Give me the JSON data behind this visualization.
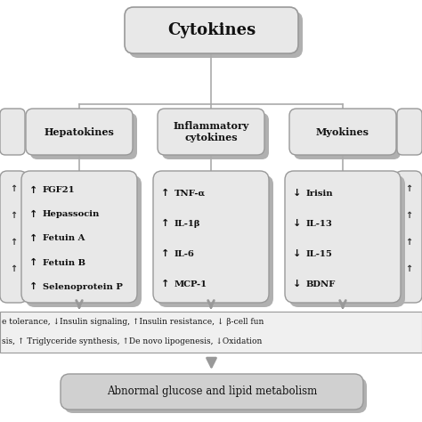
{
  "bg_color": "#ffffff",
  "box_face_light": "#e8e8e8",
  "box_face_mid": "#d0d0d0",
  "box_shadow": "#b0b0b0",
  "box_edge": "#999999",
  "line_color": "#aaaaaa",
  "arrow_color": "#999999",
  "title": "Cytokines",
  "categories": [
    "Hepatokines",
    "Inflammatory\ncytokines",
    "Myokines"
  ],
  "hepatokines_items": [
    [
      "↑",
      "FGF21"
    ],
    [
      "↑",
      "Hepassocin"
    ],
    [
      "↑",
      "Fetuin A"
    ],
    [
      "↑",
      "Fetuin B"
    ],
    [
      "↑",
      "Selenoprotein P"
    ]
  ],
  "inflammatory_items": [
    [
      "↑",
      "TNF-α"
    ],
    [
      "↑",
      "IL-1β"
    ],
    [
      "↑",
      "IL-6"
    ],
    [
      "↑",
      "MCP-1"
    ]
  ],
  "myokines_items": [
    [
      "↓",
      "Irisin"
    ],
    [
      "↓",
      "IL-13"
    ],
    [
      "↓",
      "IL-15"
    ],
    [
      "↓",
      "BDNF"
    ]
  ],
  "bottom_text_line1": "e tolerance, ↓Insulin signaling, ↑Insulin resistance, ↓ β-cell fun",
  "bottom_text_line2": "sis, ↑ Triglyceride synthesis, ↑​De novo​ lipogenesis, ↓Oxidation",
  "bottom_box_text": "Abnormal glucose and lipid metabolism",
  "figsize": [
    4.74,
    4.74
  ],
  "dpi": 100
}
